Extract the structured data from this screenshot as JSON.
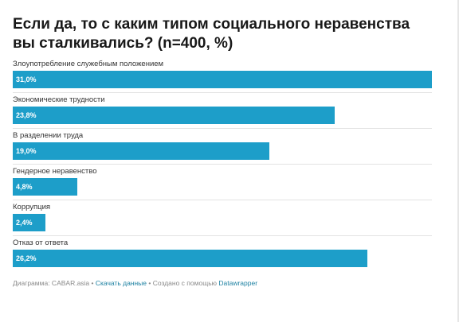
{
  "header": {
    "title": "Если да, то с каким типом социального неравенства вы сталкивались? (n=400, %)"
  },
  "chart_data": {
    "type": "bar",
    "orientation": "horizontal",
    "categories": [
      "Злоупотребление служебным положением",
      "Экономические трудности",
      "В разделении труда",
      "Гендерное неравенство",
      "Коррупция",
      "Отказ от ответа"
    ],
    "values": [
      31.0,
      23.8,
      19.0,
      4.8,
      2.4,
      26.2
    ],
    "value_labels": [
      "31,0%",
      "23,8%",
      "19,0%",
      "4,8%",
      "2,4%",
      "26,2%"
    ],
    "xlim": [
      0,
      31.0
    ],
    "bar_color": "#1d9ec9",
    "grid": false
  },
  "footer": {
    "source_prefix": "Диаграмма: CABAR.asia",
    "sep1": " • ",
    "download_link": "Скачать данные",
    "sep2": " • ",
    "created_with": "Создано с помощью ",
    "tool_link": "Datawrapper"
  }
}
